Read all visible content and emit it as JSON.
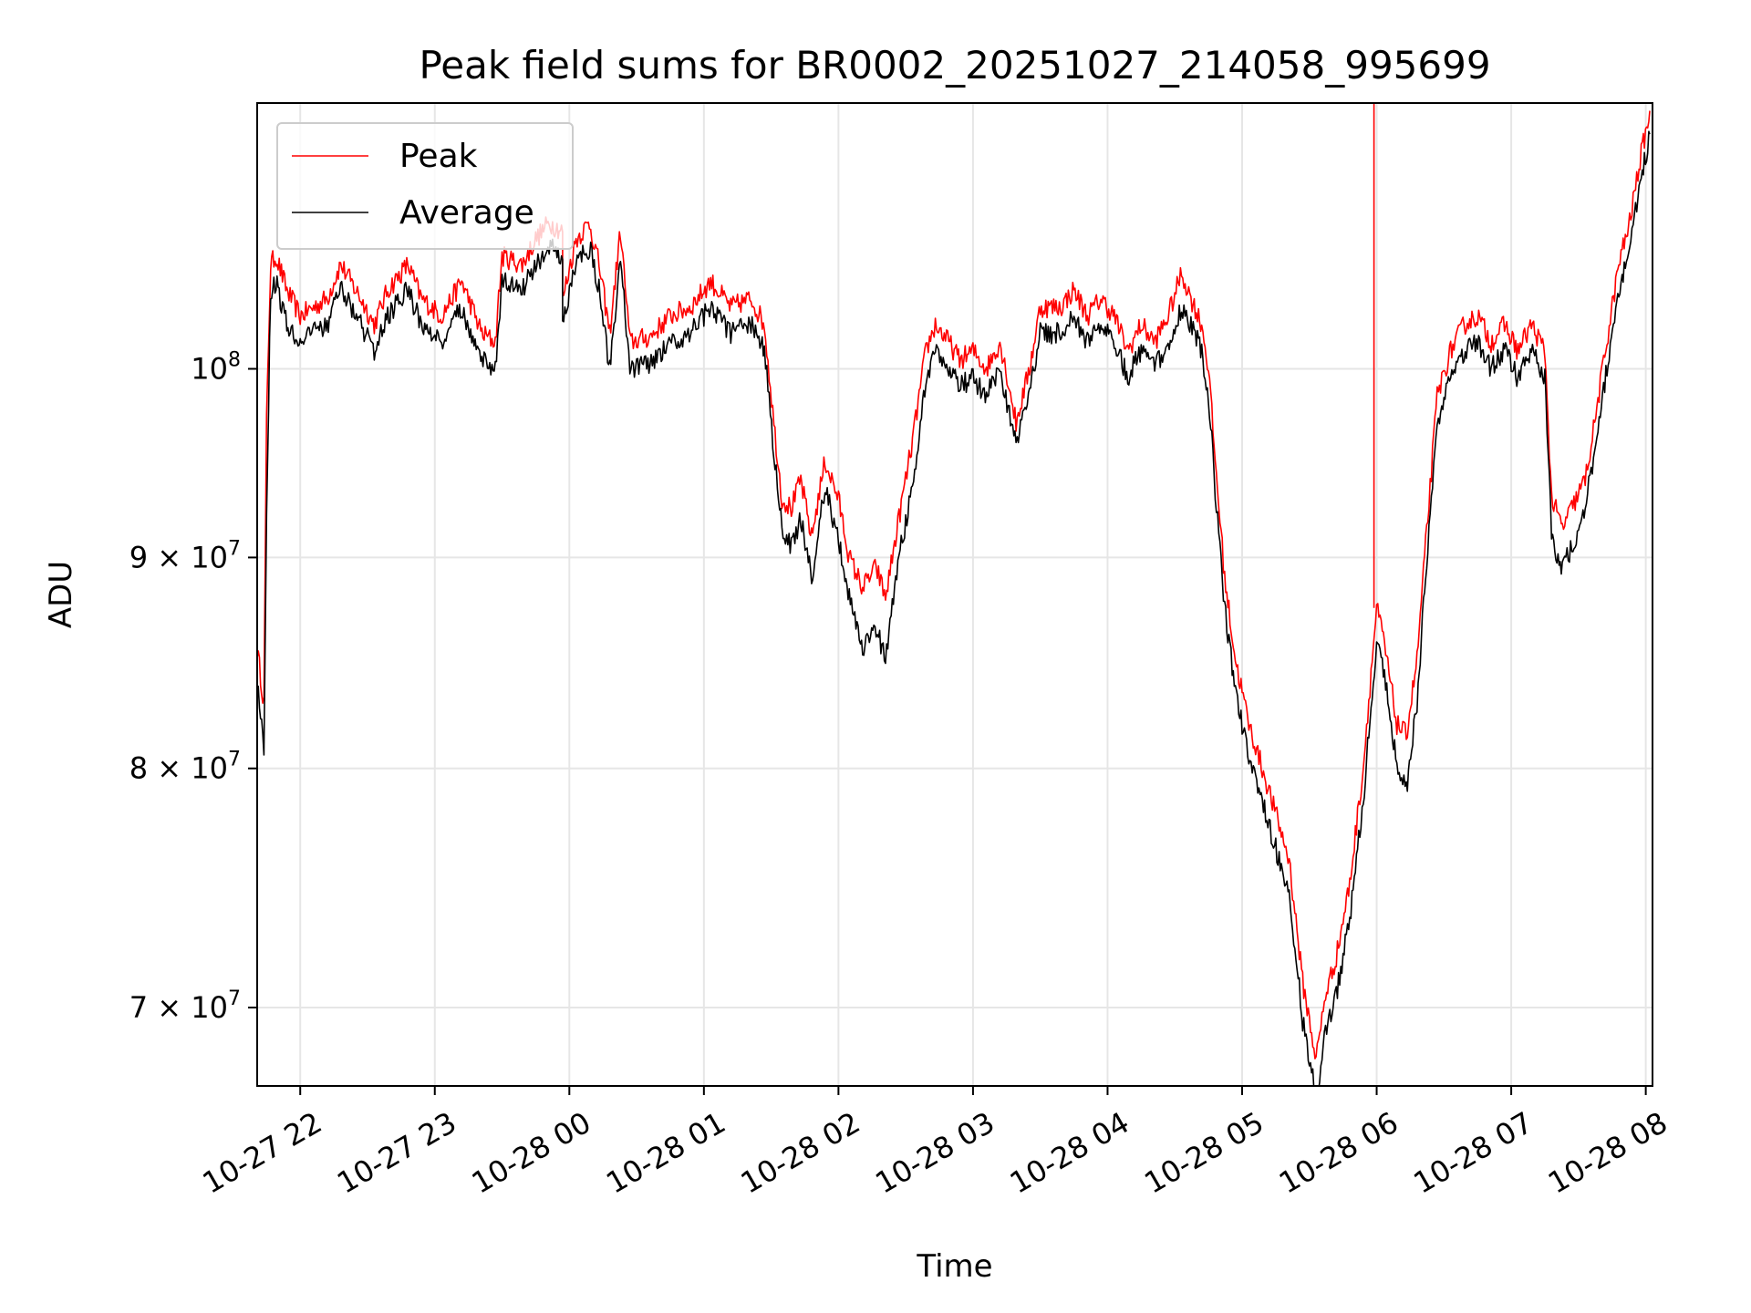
{
  "chart_data": {
    "type": "line",
    "title": "Peak field sums for BR0002_20251027_214058_995699",
    "xlabel": "Time",
    "ylabel": "ADU",
    "y_scale": "log",
    "ylim": [
      67000000,
      116000000
    ],
    "x_start_hours": -2.32,
    "x_end_hours": 8.05,
    "x_ticks": [
      {
        "hours": -2,
        "label": "10-27 22"
      },
      {
        "hours": -1,
        "label": "10-27 23"
      },
      {
        "hours": 0,
        "label": "10-28 00"
      },
      {
        "hours": 1,
        "label": "10-28 01"
      },
      {
        "hours": 2,
        "label": "10-28 02"
      },
      {
        "hours": 3,
        "label": "10-28 03"
      },
      {
        "hours": 4,
        "label": "10-28 04"
      },
      {
        "hours": 5,
        "label": "10-28 05"
      },
      {
        "hours": 6,
        "label": "10-28 06"
      },
      {
        "hours": 7,
        "label": "10-28 07"
      },
      {
        "hours": 8,
        "label": "10-28 08"
      }
    ],
    "y_ticks": [
      {
        "value": 70000000,
        "base": "7 × 10",
        "exp": "7"
      },
      {
        "value": 80000000,
        "base": "8 × 10",
        "exp": "7"
      },
      {
        "value": 90000000,
        "base": "9 × 10",
        "exp": "7"
      },
      {
        "value": 100000000,
        "base": "10",
        "exp": "8"
      }
    ],
    "grid": true,
    "legend_position": "upper-left",
    "series": [
      {
        "name": "Peak",
        "color": "#ff0000",
        "spike": {
          "hours": 5.98,
          "to_value": 116000000
        },
        "points": [
          [
            -2.32,
            85500000
          ],
          [
            -2.27,
            83000000
          ],
          [
            -2.25,
            97000000
          ],
          [
            -2.22,
            106000000
          ],
          [
            -2.18,
            106500000
          ],
          [
            -2.1,
            104500000
          ],
          [
            -2.0,
            103000000
          ],
          [
            -1.8,
            104000000
          ],
          [
            -1.7,
            106000000
          ],
          [
            -1.55,
            104000000
          ],
          [
            -1.45,
            102500000
          ],
          [
            -1.35,
            104500000
          ],
          [
            -1.2,
            106000000
          ],
          [
            -1.1,
            104000000
          ],
          [
            -0.95,
            103000000
          ],
          [
            -0.8,
            105000000
          ],
          [
            -0.65,
            102000000
          ],
          [
            -0.55,
            101500000
          ],
          [
            -0.5,
            106500000
          ],
          [
            -0.35,
            106000000
          ],
          [
            -0.25,
            107500000
          ],
          [
            -0.15,
            108500000
          ],
          [
            -0.05,
            108000000
          ],
          [
            -0.05,
            104000000
          ],
          [
            0.05,
            107500000
          ],
          [
            0.15,
            108500000
          ],
          [
            0.22,
            106000000
          ],
          [
            0.3,
            102000000
          ],
          [
            0.38,
            108000000
          ],
          [
            0.45,
            101500000
          ],
          [
            0.6,
            101800000
          ],
          [
            0.75,
            103000000
          ],
          [
            0.9,
            103500000
          ],
          [
            1.05,
            105000000
          ],
          [
            1.2,
            103500000
          ],
          [
            1.35,
            104000000
          ],
          [
            1.45,
            102500000
          ],
          [
            1.52,
            97000000
          ],
          [
            1.58,
            93000000
          ],
          [
            1.65,
            92500000
          ],
          [
            1.72,
            94000000
          ],
          [
            1.8,
            91000000
          ],
          [
            1.9,
            95000000
          ],
          [
            2.0,
            93000000
          ],
          [
            2.08,
            90000000
          ],
          [
            2.18,
            88500000
          ],
          [
            2.28,
            89500000
          ],
          [
            2.35,
            88000000
          ],
          [
            2.45,
            92000000
          ],
          [
            2.55,
            96000000
          ],
          [
            2.65,
            101000000
          ],
          [
            2.72,
            102500000
          ],
          [
            2.82,
            101500000
          ],
          [
            2.9,
            100500000
          ],
          [
            3.0,
            101000000
          ],
          [
            3.1,
            100000000
          ],
          [
            3.2,
            101500000
          ],
          [
            3.27,
            99000000
          ],
          [
            3.32,
            97000000
          ],
          [
            3.42,
            100000000
          ],
          [
            3.5,
            103500000
          ],
          [
            3.65,
            103500000
          ],
          [
            3.75,
            104500000
          ],
          [
            3.85,
            103000000
          ],
          [
            3.95,
            104000000
          ],
          [
            4.05,
            103000000
          ],
          [
            4.15,
            101000000
          ],
          [
            4.25,
            102500000
          ],
          [
            4.35,
            101500000
          ],
          [
            4.45,
            103000000
          ],
          [
            4.55,
            105500000
          ],
          [
            4.62,
            104000000
          ],
          [
            4.7,
            102500000
          ],
          [
            4.75,
            100000000
          ],
          [
            4.8,
            95000000
          ],
          [
            4.87,
            89000000
          ],
          [
            4.95,
            85000000
          ],
          [
            5.05,
            82000000
          ],
          [
            5.15,
            80000000
          ],
          [
            5.25,
            78000000
          ],
          [
            5.35,
            76000000
          ],
          [
            5.45,
            71000000
          ],
          [
            5.55,
            68000000
          ],
          [
            5.62,
            70500000
          ],
          [
            5.7,
            72000000
          ],
          [
            5.8,
            75000000
          ],
          [
            5.9,
            80000000
          ],
          [
            6.0,
            87500000
          ],
          [
            6.05,
            86000000
          ],
          [
            6.1,
            84000000
          ],
          [
            6.15,
            82000000
          ],
          [
            6.22,
            81500000
          ],
          [
            6.3,
            85000000
          ],
          [
            6.38,
            92000000
          ],
          [
            6.45,
            98500000
          ],
          [
            6.55,
            101000000
          ],
          [
            6.65,
            102500000
          ],
          [
            6.75,
            103000000
          ],
          [
            6.85,
            101500000
          ],
          [
            6.95,
            102500000
          ],
          [
            7.05,
            101000000
          ],
          [
            7.15,
            102500000
          ],
          [
            7.25,
            101000000
          ],
          [
            7.3,
            93000000
          ],
          [
            7.38,
            91500000
          ],
          [
            7.45,
            92500000
          ],
          [
            7.55,
            94000000
          ],
          [
            7.62,
            97000000
          ],
          [
            7.72,
            102000000
          ],
          [
            7.8,
            106000000
          ],
          [
            7.88,
            108500000
          ],
          [
            7.95,
            112000000
          ],
          [
            8.03,
            115500000
          ]
        ]
      },
      {
        "name": "Average",
        "color": "#000000",
        "points": [
          [
            -2.32,
            84000000
          ],
          [
            -2.27,
            81000000
          ],
          [
            -2.25,
            92000000
          ],
          [
            -2.22,
            104500000
          ],
          [
            -2.18,
            105000000
          ],
          [
            -2.1,
            102500000
          ],
          [
            -2.0,
            101500000
          ],
          [
            -1.8,
            102500000
          ],
          [
            -1.7,
            104500000
          ],
          [
            -1.55,
            102500000
          ],
          [
            -1.45,
            101000000
          ],
          [
            -1.35,
            103000000
          ],
          [
            -1.2,
            104500000
          ],
          [
            -1.1,
            102500000
          ],
          [
            -0.95,
            101500000
          ],
          [
            -0.8,
            103500000
          ],
          [
            -0.65,
            100500000
          ],
          [
            -0.55,
            100000000
          ],
          [
            -0.5,
            105000000
          ],
          [
            -0.35,
            104500000
          ],
          [
            -0.25,
            106000000
          ],
          [
            -0.15,
            107000000
          ],
          [
            -0.05,
            106500000
          ],
          [
            -0.05,
            102500000
          ],
          [
            0.05,
            106000000
          ],
          [
            0.15,
            107000000
          ],
          [
            0.22,
            104500000
          ],
          [
            0.3,
            100000000
          ],
          [
            0.38,
            106500000
          ],
          [
            0.45,
            100000000
          ],
          [
            0.6,
            100300000
          ],
          [
            0.75,
            101500000
          ],
          [
            0.9,
            102000000
          ],
          [
            1.05,
            103500000
          ],
          [
            1.2,
            102000000
          ],
          [
            1.35,
            102500000
          ],
          [
            1.45,
            101000000
          ],
          [
            1.52,
            95500000
          ],
          [
            1.58,
            91500000
          ],
          [
            1.65,
            90500000
          ],
          [
            1.72,
            92000000
          ],
          [
            1.8,
            89000000
          ],
          [
            1.9,
            93500000
          ],
          [
            2.0,
            91000000
          ],
          [
            2.08,
            88000000
          ],
          [
            2.18,
            85500000
          ],
          [
            2.28,
            86500000
          ],
          [
            2.35,
            85000000
          ],
          [
            2.45,
            90000000
          ],
          [
            2.55,
            93500000
          ],
          [
            2.65,
            99500000
          ],
          [
            2.72,
            101000000
          ],
          [
            2.82,
            100000000
          ],
          [
            2.9,
            99000000
          ],
          [
            3.0,
            99500000
          ],
          [
            3.1,
            98500000
          ],
          [
            3.2,
            100000000
          ],
          [
            3.27,
            97500000
          ],
          [
            3.32,
            96000000
          ],
          [
            3.42,
            98500000
          ],
          [
            3.5,
            102000000
          ],
          [
            3.65,
            102000000
          ],
          [
            3.75,
            103000000
          ],
          [
            3.85,
            101500000
          ],
          [
            3.95,
            102500000
          ],
          [
            4.05,
            101500000
          ],
          [
            4.15,
            99500000
          ],
          [
            4.25,
            101000000
          ],
          [
            4.35,
            100000000
          ],
          [
            4.45,
            101500000
          ],
          [
            4.55,
            103500000
          ],
          [
            4.62,
            102500000
          ],
          [
            4.7,
            101000000
          ],
          [
            4.75,
            98500000
          ],
          [
            4.8,
            93500000
          ],
          [
            4.87,
            87500000
          ],
          [
            4.95,
            83500000
          ],
          [
            5.05,
            80500000
          ],
          [
            5.15,
            78500000
          ],
          [
            5.25,
            76500000
          ],
          [
            5.35,
            74500000
          ],
          [
            5.45,
            69500000
          ],
          [
            5.55,
            66500000
          ],
          [
            5.62,
            69000000
          ],
          [
            5.7,
            70500000
          ],
          [
            5.8,
            73500000
          ],
          [
            5.9,
            78500000
          ],
          [
            6.0,
            86000000
          ],
          [
            6.05,
            84500000
          ],
          [
            6.1,
            82500000
          ],
          [
            6.15,
            80000000
          ],
          [
            6.22,
            79000000
          ],
          [
            6.3,
            83000000
          ],
          [
            6.38,
            90500000
          ],
          [
            6.45,
            97000000
          ],
          [
            6.55,
            99500000
          ],
          [
            6.65,
            101000000
          ],
          [
            6.75,
            101500000
          ],
          [
            6.85,
            100000000
          ],
          [
            6.95,
            101000000
          ],
          [
            7.05,
            99500000
          ],
          [
            7.15,
            101000000
          ],
          [
            7.25,
            99500000
          ],
          [
            7.3,
            91000000
          ],
          [
            7.38,
            89500000
          ],
          [
            7.45,
            90500000
          ],
          [
            7.55,
            92500000
          ],
          [
            7.62,
            95500000
          ],
          [
            7.72,
            100500000
          ],
          [
            7.8,
            104500000
          ],
          [
            7.88,
            107000000
          ],
          [
            7.95,
            110500000
          ],
          [
            8.03,
            114000000
          ]
        ]
      }
    ]
  }
}
